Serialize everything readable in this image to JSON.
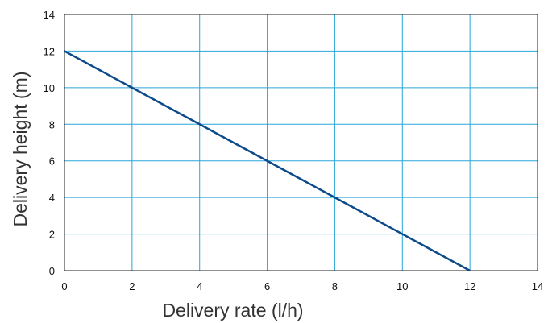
{
  "chart_data": {
    "type": "line",
    "title": "",
    "xlabel": "Delivery rate (l/h)",
    "ylabel": "Delivery height (m)",
    "xlim": [
      0,
      14
    ],
    "ylim": [
      0,
      14
    ],
    "x_ticks": [
      0,
      2,
      4,
      6,
      8,
      10,
      12,
      14
    ],
    "y_ticks": [
      0,
      2,
      4,
      6,
      8,
      10,
      12,
      14
    ],
    "grid": true,
    "legend": "none",
    "series": [
      {
        "x": [
          0,
          2,
          4,
          6,
          8,
          10,
          12
        ],
        "y": [
          12,
          10,
          8,
          6,
          4,
          2,
          0
        ]
      }
    ],
    "colors": {
      "line": "#0d4a8a",
      "grid": "#2aa6d8",
      "frame": "#222222"
    }
  }
}
